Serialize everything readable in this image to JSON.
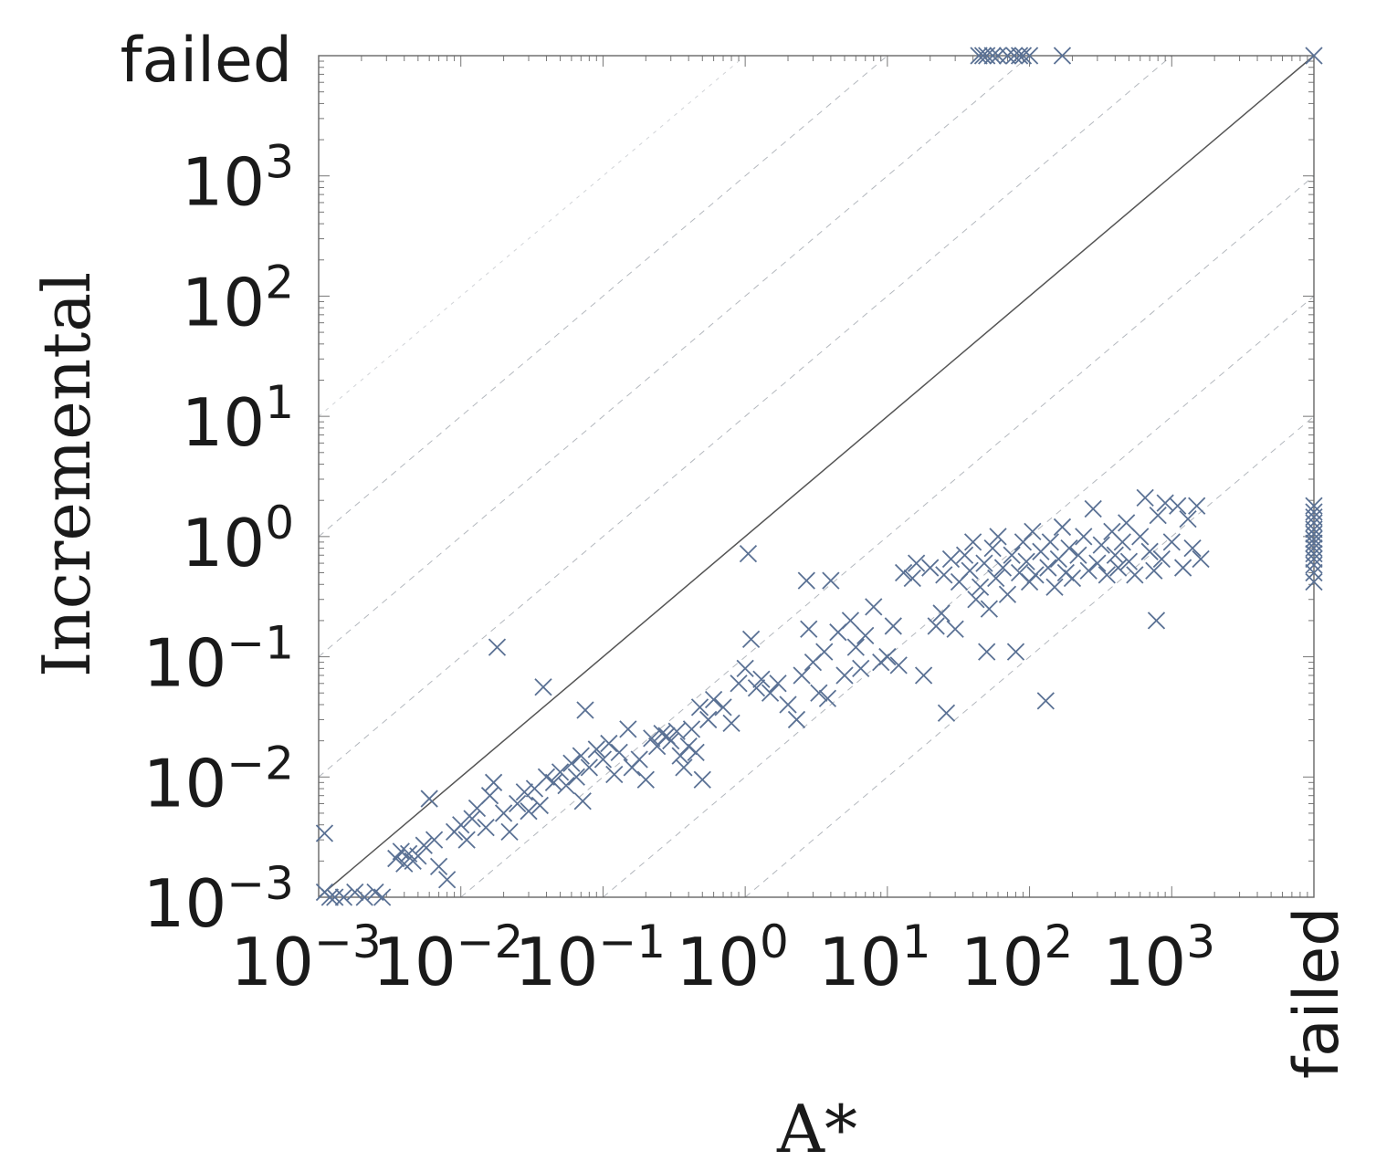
{
  "chart_data": {
    "type": "scatter",
    "title": "",
    "xlabel": "A*",
    "ylabel": "Incremental",
    "xscale": "log",
    "yscale": "log",
    "xlim": [
      0.001,
      10000
    ],
    "ylim": [
      0.001,
      10000
    ],
    "failed_label": "failed",
    "x_ticks": [
      {
        "value": 0.001,
        "base": "10",
        "exp": "−3"
      },
      {
        "value": 0.01,
        "base": "10",
        "exp": "−2"
      },
      {
        "value": 0.1,
        "base": "10",
        "exp": "−1"
      },
      {
        "value": 1,
        "base": "10",
        "exp": "0"
      },
      {
        "value": 10,
        "base": "10",
        "exp": "1"
      },
      {
        "value": 100,
        "base": "10",
        "exp": "2"
      },
      {
        "value": 1000,
        "base": "10",
        "exp": "3"
      }
    ],
    "y_ticks": [
      {
        "value": 0.001,
        "base": "10",
        "exp": "−3"
      },
      {
        "value": 0.01,
        "base": "10",
        "exp": "−2"
      },
      {
        "value": 0.1,
        "base": "10",
        "exp": "−1"
      },
      {
        "value": 1,
        "base": "10",
        "exp": "0"
      },
      {
        "value": 10,
        "base": "10",
        "exp": "1"
      },
      {
        "value": 100,
        "base": "10",
        "exp": "2"
      },
      {
        "value": 1000,
        "base": "10",
        "exp": "3"
      }
    ],
    "reference_line": "y = x",
    "reference_factors": [
      0.001,
      0.01,
      0.1,
      10,
      100,
      1000,
      10000
    ],
    "marker": "x",
    "marker_color": "#5a7194",
    "line_color": "#555555",
    "guide_color": "#9aa0a8",
    "grid": false,
    "points": [
      [
        0.0011,
        0.0034
      ],
      [
        0.0011,
        0.0011
      ],
      [
        0.0012,
        0.001
      ],
      [
        0.0013,
        0.001
      ],
      [
        0.0015,
        0.001
      ],
      [
        0.0018,
        0.0011
      ],
      [
        0.0021,
        0.001
      ],
      [
        0.0025,
        0.0011
      ],
      [
        0.0028,
        0.001
      ],
      [
        0.0035,
        0.0021
      ],
      [
        0.0038,
        0.0024
      ],
      [
        0.004,
        0.0019
      ],
      [
        0.0043,
        0.0023
      ],
      [
        0.0046,
        0.002
      ],
      [
        0.005,
        0.0022
      ],
      [
        0.0055,
        0.0027
      ],
      [
        0.006,
        0.0066
      ],
      [
        0.0065,
        0.003
      ],
      [
        0.007,
        0.0018
      ],
      [
        0.008,
        0.0014
      ],
      [
        0.009,
        0.0035
      ],
      [
        0.01,
        0.004
      ],
      [
        0.011,
        0.003
      ],
      [
        0.012,
        0.0045
      ],
      [
        0.013,
        0.0055
      ],
      [
        0.015,
        0.0038
      ],
      [
        0.016,
        0.007
      ],
      [
        0.017,
        0.009
      ],
      [
        0.018,
        0.12
      ],
      [
        0.02,
        0.005
      ],
      [
        0.022,
        0.0035
      ],
      [
        0.025,
        0.006
      ],
      [
        0.028,
        0.0075
      ],
      [
        0.03,
        0.0052
      ],
      [
        0.033,
        0.008
      ],
      [
        0.036,
        0.0058
      ],
      [
        0.038,
        0.056
      ],
      [
        0.04,
        0.01
      ],
      [
        0.045,
        0.009
      ],
      [
        0.05,
        0.011
      ],
      [
        0.055,
        0.0085
      ],
      [
        0.06,
        0.013
      ],
      [
        0.065,
        0.01
      ],
      [
        0.07,
        0.015
      ],
      [
        0.072,
        0.0063
      ],
      [
        0.075,
        0.036
      ],
      [
        0.08,
        0.012
      ],
      [
        0.09,
        0.017
      ],
      [
        0.1,
        0.014
      ],
      [
        0.11,
        0.019
      ],
      [
        0.12,
        0.0105
      ],
      [
        0.13,
        0.016
      ],
      [
        0.15,
        0.025
      ],
      [
        0.16,
        0.012
      ],
      [
        0.18,
        0.014
      ],
      [
        0.2,
        0.0095
      ],
      [
        0.22,
        0.021
      ],
      [
        0.24,
        0.018
      ],
      [
        0.26,
        0.023
      ],
      [
        0.28,
        0.022
      ],
      [
        0.3,
        0.02
      ],
      [
        0.33,
        0.024
      ],
      [
        0.35,
        0.015
      ],
      [
        0.37,
        0.012
      ],
      [
        0.4,
        0.018
      ],
      [
        0.42,
        0.025
      ],
      [
        0.45,
        0.016
      ],
      [
        0.48,
        0.038
      ],
      [
        0.5,
        0.0095
      ],
      [
        0.55,
        0.03
      ],
      [
        0.6,
        0.044
      ],
      [
        0.7,
        0.038
      ],
      [
        0.8,
        0.028
      ],
      [
        0.9,
        0.06
      ],
      [
        1.0,
        0.08
      ],
      [
        1.05,
        0.72
      ],
      [
        1.1,
        0.14
      ],
      [
        1.2,
        0.055
      ],
      [
        1.3,
        0.065
      ],
      [
        1.5,
        0.05
      ],
      [
        1.7,
        0.06
      ],
      [
        2.0,
        0.04
      ],
      [
        2.3,
        0.03
      ],
      [
        2.5,
        0.07
      ],
      [
        2.7,
        0.43
      ],
      [
        2.8,
        0.17
      ],
      [
        3.0,
        0.09
      ],
      [
        3.3,
        0.05
      ],
      [
        3.6,
        0.11
      ],
      [
        3.8,
        0.045
      ],
      [
        4.0,
        0.43
      ],
      [
        4.5,
        0.16
      ],
      [
        5.0,
        0.07
      ],
      [
        5.5,
        0.2
      ],
      [
        6.0,
        0.12
      ],
      [
        6.5,
        0.08
      ],
      [
        7.0,
        0.15
      ],
      [
        8.0,
        0.26
      ],
      [
        9.0,
        0.09
      ],
      [
        10.0,
        0.1
      ],
      [
        11.0,
        0.18
      ],
      [
        12.0,
        0.085
      ],
      [
        13.0,
        0.5
      ],
      [
        15.0,
        0.45
      ],
      [
        16.0,
        0.6
      ],
      [
        18.0,
        0.07
      ],
      [
        20.0,
        0.55
      ],
      [
        22.0,
        0.18
      ],
      [
        24.0,
        0.23
      ],
      [
        25.0,
        0.48
      ],
      [
        26.0,
        0.034
      ],
      [
        28.0,
        0.65
      ],
      [
        30.0,
        0.17
      ],
      [
        32.0,
        0.42
      ],
      [
        35.0,
        0.7
      ],
      [
        38.0,
        0.52
      ],
      [
        40.0,
        0.9
      ],
      [
        42.0,
        0.3
      ],
      [
        45.0,
        0.38
      ],
      [
        48.0,
        0.6
      ],
      [
        50.0,
        0.11
      ],
      [
        52.0,
        0.25
      ],
      [
        55.0,
        0.8
      ],
      [
        58.0,
        0.45
      ],
      [
        60.0,
        1.0
      ],
      [
        65.0,
        0.55
      ],
      [
        70.0,
        0.33
      ],
      [
        75.0,
        0.7
      ],
      [
        80.0,
        0.11
      ],
      [
        85.0,
        0.5
      ],
      [
        90.0,
        0.9
      ],
      [
        95.0,
        0.62
      ],
      [
        100.0,
        0.42
      ],
      [
        105.0,
        1.1
      ],
      [
        110.0,
        0.48
      ],
      [
        120.0,
        0.75
      ],
      [
        130.0,
        0.043
      ],
      [
        135.0,
        0.55
      ],
      [
        140.0,
        0.9
      ],
      [
        150.0,
        0.38
      ],
      [
        160.0,
        0.65
      ],
      [
        170.0,
        1.2
      ],
      [
        180.0,
        0.5
      ],
      [
        190.0,
        0.8
      ],
      [
        200.0,
        0.45
      ],
      [
        220.0,
        0.7
      ],
      [
        240.0,
        1.0
      ],
      [
        260.0,
        0.52
      ],
      [
        280.0,
        1.7
      ],
      [
        300.0,
        0.6
      ],
      [
        320.0,
        0.85
      ],
      [
        350.0,
        0.48
      ],
      [
        380.0,
        1.1
      ],
      [
        400.0,
        0.7
      ],
      [
        420.0,
        0.55
      ],
      [
        450.0,
        0.9
      ],
      [
        480.0,
        1.3
      ],
      [
        500.0,
        0.62
      ],
      [
        550.0,
        0.48
      ],
      [
        600.0,
        1.0
      ],
      [
        650.0,
        2.1
      ],
      [
        700.0,
        0.75
      ],
      [
        750.0,
        0.52
      ],
      [
        780.0,
        0.2
      ],
      [
        800.0,
        1.5
      ],
      [
        850.0,
        0.65
      ],
      [
        900.0,
        1.9
      ],
      [
        1000.0,
        0.9
      ],
      [
        1100.0,
        1.8
      ],
      [
        1200.0,
        0.55
      ],
      [
        1300.0,
        1.4
      ],
      [
        1400.0,
        0.8
      ],
      [
        1500.0,
        1.8
      ],
      [
        1600.0,
        0.65
      ],
      [
        44.0,
        "failed"
      ],
      [
        47.0,
        "failed"
      ],
      [
        50.0,
        "failed"
      ],
      [
        55.0,
        "failed"
      ],
      [
        60.0,
        "failed"
      ],
      [
        70.0,
        "failed"
      ],
      [
        78.0,
        "failed"
      ],
      [
        85.0,
        "failed"
      ],
      [
        90.0,
        "failed"
      ],
      [
        100.0,
        "failed"
      ],
      [
        170.0,
        "failed"
      ],
      [
        "failed",
        "failed"
      ],
      [
        "failed",
        0.42
      ],
      [
        "failed",
        0.5
      ],
      [
        "failed",
        0.58
      ],
      [
        "failed",
        0.65
      ],
      [
        "failed",
        0.72
      ],
      [
        "failed",
        0.8
      ],
      [
        "failed",
        0.88
      ],
      [
        "failed",
        0.95
      ],
      [
        "failed",
        1.05
      ],
      [
        "failed",
        1.15
      ],
      [
        "failed",
        1.3
      ],
      [
        "failed",
        1.45
      ],
      [
        "failed",
        1.6
      ],
      [
        "failed",
        1.8
      ]
    ]
  }
}
